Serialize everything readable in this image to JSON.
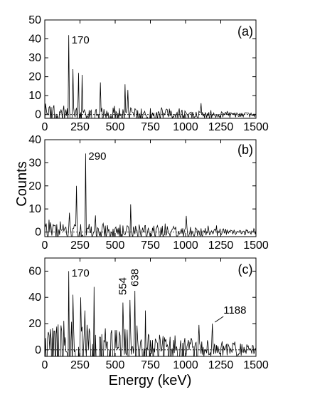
{
  "chart_data": {
    "type": "line",
    "xlabel": "Energy (keV)",
    "ylabel": "Counts",
    "xlim": [
      0,
      1500
    ],
    "x_ticks": [
      0,
      250,
      500,
      750,
      1000,
      1250,
      1500
    ],
    "x_tick_labels": [
      "0",
      "250",
      "500",
      "750",
      "1000",
      "1250",
      "1500"
    ],
    "grid": false,
    "panels": [
      {
        "tag": "(a)",
        "ylim": [
          -2,
          50
        ],
        "y_ticks": [
          0,
          10,
          20,
          30,
          40,
          50
        ],
        "y_tick_labels": [
          "0",
          "10",
          "20",
          "30",
          "40",
          "50"
        ],
        "bin_width_keV": 5,
        "noise_profile": [
          [
            0,
            7
          ],
          [
            300,
            6
          ],
          [
            650,
            5
          ],
          [
            1000,
            3.5
          ],
          [
            1250,
            2
          ],
          [
            1500,
            1.5
          ]
        ],
        "peaks": [
          [
            170,
            42
          ],
          [
            200,
            24
          ],
          [
            240,
            22
          ],
          [
            265,
            21
          ],
          [
            395,
            17
          ],
          [
            570,
            16
          ],
          [
            590,
            13
          ],
          [
            1110,
            6
          ]
        ],
        "annotations": [
          {
            "text": "170",
            "energy": 170
          }
        ]
      },
      {
        "tag": "(b)",
        "ylim": [
          -2,
          40
        ],
        "y_ticks": [
          0,
          10,
          20,
          30,
          40
        ],
        "y_tick_labels": [
          "0",
          "10",
          "20",
          "30",
          "40"
        ],
        "bin_width_keV": 5,
        "noise_profile": [
          [
            0,
            6
          ],
          [
            300,
            5
          ],
          [
            650,
            4.5
          ],
          [
            1000,
            3
          ],
          [
            1250,
            2
          ],
          [
            1500,
            1.5
          ]
        ],
        "peaks": [
          [
            225,
            20
          ],
          [
            290,
            34
          ],
          [
            610,
            12
          ],
          [
            1005,
            7
          ]
        ],
        "annotations": [
          {
            "text": "290",
            "energy": 290
          }
        ]
      },
      {
        "tag": "(c)",
        "ylim": [
          -5,
          70
        ],
        "y_ticks": [
          0,
          20,
          40,
          60
        ],
        "y_tick_labels": [
          "0",
          "20",
          "40",
          "60"
        ],
        "bin_width_keV": 5,
        "noise_profile": [
          [
            0,
            28
          ],
          [
            300,
            26
          ],
          [
            650,
            20
          ],
          [
            1000,
            14
          ],
          [
            1250,
            8
          ],
          [
            1500,
            5
          ]
        ],
        "peaks": [
          [
            170,
            60
          ],
          [
            200,
            42
          ],
          [
            255,
            40
          ],
          [
            350,
            48
          ],
          [
            554,
            36
          ],
          [
            605,
            38
          ],
          [
            638,
            45
          ],
          [
            1188,
            20
          ]
        ],
        "annotations": [
          {
            "text": "170",
            "energy": 170,
            "orientation": "horizontal"
          },
          {
            "text": "554",
            "energy": 554,
            "orientation": "vertical"
          },
          {
            "text": "638",
            "energy": 638,
            "orientation": "vertical"
          },
          {
            "text": "1188",
            "energy": 1188,
            "orientation": "horizontal",
            "leader": true
          }
        ]
      }
    ]
  }
}
